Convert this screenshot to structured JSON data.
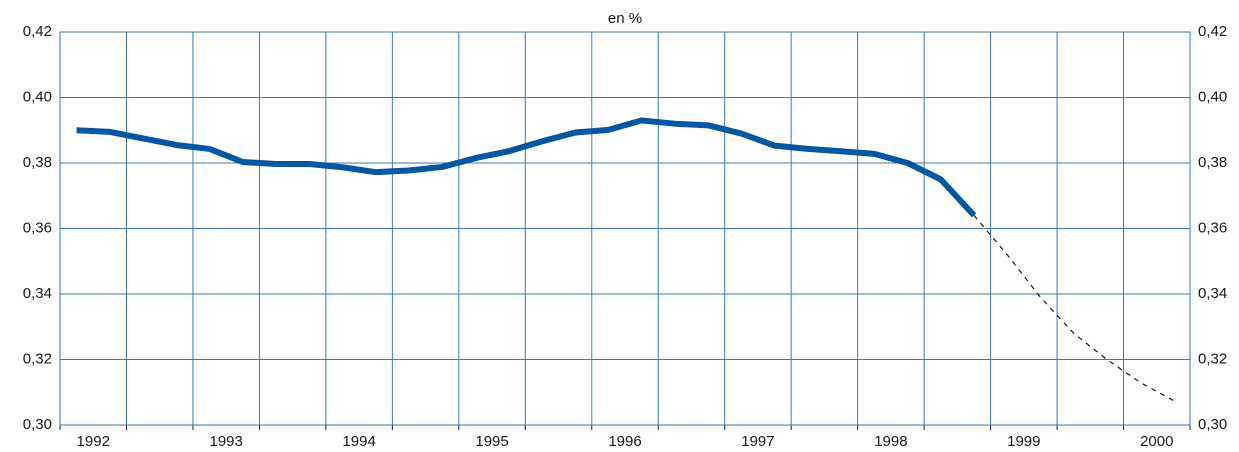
{
  "chart_data": {
    "type": "line",
    "title": "en %",
    "x": [
      1991.875,
      1992.125,
      1992.375,
      1992.625,
      1992.875,
      1993.125,
      1993.375,
      1993.625,
      1993.875,
      1994.125,
      1994.375,
      1994.625,
      1994.875,
      1995.125,
      1995.375,
      1995.625,
      1995.875,
      1996.125,
      1996.375,
      1996.625,
      1996.875,
      1997.125,
      1997.375,
      1997.625,
      1997.875,
      1998.125,
      1998.375,
      1998.625,
      1998.875,
      1999.125,
      1999.375,
      1999.625,
      1999.875,
      2000.125
    ],
    "series": [
      {
        "color": "#0057a8",
        "dashed": false,
        "values": [
          0.39,
          0.3895,
          0.3875,
          0.3855,
          0.3843,
          0.3803,
          0.3797,
          0.3797,
          0.3787,
          0.3772,
          0.3777,
          0.3788,
          0.3815,
          0.3836,
          0.3866,
          0.3893,
          0.3901,
          0.393,
          0.392,
          0.3915,
          0.389,
          0.3853,
          0.3843,
          0.3836,
          0.3828,
          0.38,
          0.375,
          0.364,
          null,
          null,
          null,
          null,
          null,
          null
        ]
      },
      {
        "color": "#1a1a1a",
        "dashed": true,
        "values": [
          null,
          null,
          null,
          null,
          null,
          null,
          null,
          null,
          null,
          null,
          null,
          null,
          null,
          null,
          null,
          null,
          null,
          null,
          null,
          null,
          null,
          null,
          null,
          null,
          null,
          null,
          null,
          0.364,
          0.352,
          0.339,
          0.328,
          0.32,
          0.313,
          0.3075
        ]
      }
    ],
    "xlim": [
      1991.75,
      2000.25
    ],
    "xticks": [
      1992,
      1993,
      1994,
      1995,
      1996,
      1997,
      1998,
      1999,
      2000
    ],
    "xgrid": [
      1991.75,
      1992.25,
      1992.75,
      1993.25,
      1993.75,
      1994.25,
      1994.75,
      1995.25,
      1995.75,
      1996.25,
      1996.75,
      1997.25,
      1997.75,
      1998.25,
      1998.75,
      1999.25,
      1999.75,
      2000.25
    ],
    "ylim": [
      0.3,
      0.42
    ],
    "yticks": [
      {
        "value": 0.3,
        "label": "0,30"
      },
      {
        "value": 0.32,
        "label": "0,32"
      },
      {
        "value": 0.34,
        "label": "0,34"
      },
      {
        "value": 0.36,
        "label": "0,36"
      },
      {
        "value": 0.38,
        "label": "0,38"
      },
      {
        "value": 0.4,
        "label": "0,40"
      },
      {
        "value": 0.42,
        "label": "0,42"
      }
    ],
    "grid": true,
    "right_axis": true,
    "grid_color": "#3a78bf"
  }
}
